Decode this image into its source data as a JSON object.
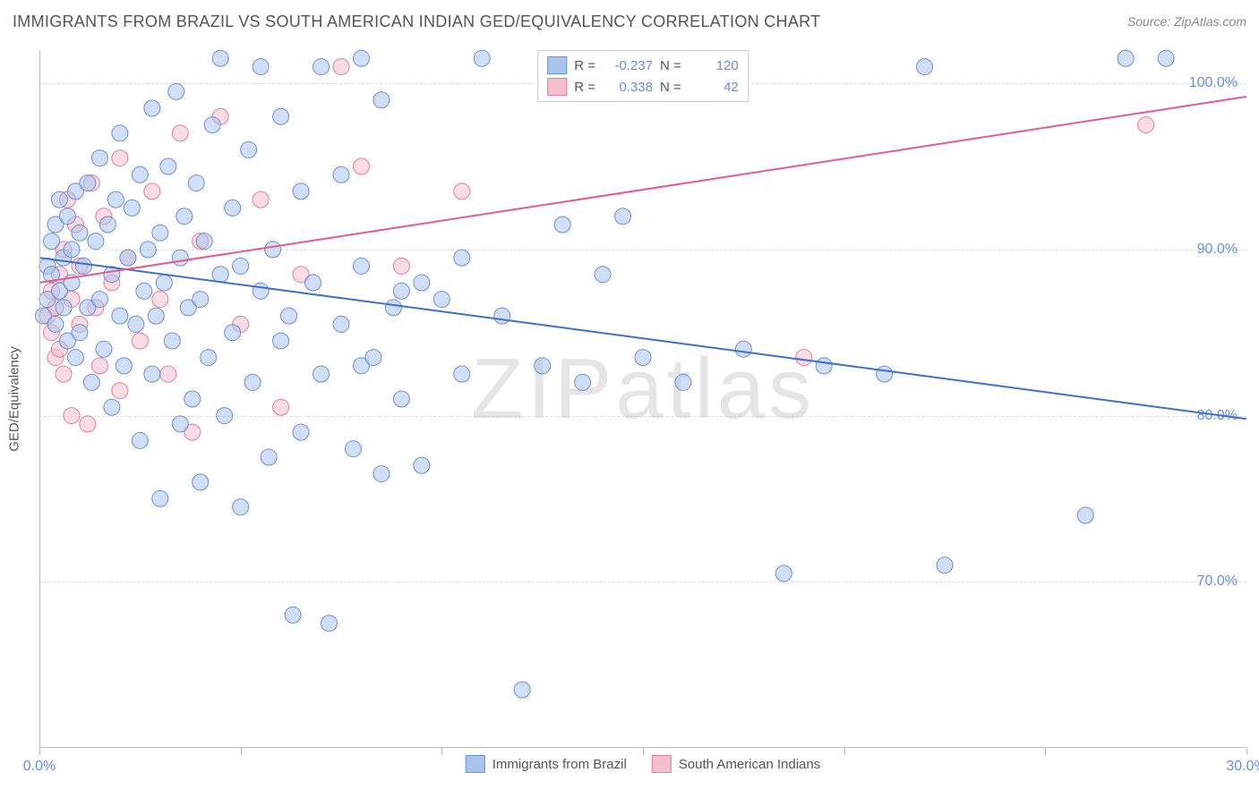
{
  "header": {
    "title": "IMMIGRANTS FROM BRAZIL VS SOUTH AMERICAN INDIAN GED/EQUIVALENCY CORRELATION CHART",
    "source_prefix": "Source: ",
    "source": "ZipAtlas.com"
  },
  "watermark": "ZIPatlas",
  "chart": {
    "type": "scatter",
    "y_axis_title": "GED/Equivalency",
    "xlim": [
      0,
      30
    ],
    "ylim": [
      60,
      102
    ],
    "xticks": [
      0,
      5,
      10,
      15,
      20,
      25,
      30
    ],
    "xtick_labels": {
      "0": "0.0%",
      "30": "30.0%"
    },
    "yticks": [
      70,
      80,
      90,
      100
    ],
    "ytick_labels": {
      "70": "70.0%",
      "80": "80.0%",
      "90": "90.0%",
      "100": "100.0%"
    },
    "grid_color": "#dddddd",
    "axis_color": "#bbbbbb",
    "background_color": "#ffffff",
    "point_radius": 9,
    "point_opacity": 0.55,
    "series": [
      {
        "key": "brazil",
        "label": "Immigrants from Brazil",
        "fill": "#a9c4ec",
        "stroke": "#6b8fd6",
        "R": "-0.237",
        "N": "120",
        "trend": {
          "x1": 0,
          "y1": 89.5,
          "x2": 30,
          "y2": 79.8,
          "stroke": "#3f6fd1",
          "width": 2
        },
        "points": [
          [
            0.1,
            86.0
          ],
          [
            0.2,
            89.0
          ],
          [
            0.2,
            87.0
          ],
          [
            0.3,
            90.5
          ],
          [
            0.3,
            88.5
          ],
          [
            0.4,
            91.5
          ],
          [
            0.4,
            85.5
          ],
          [
            0.5,
            93.0
          ],
          [
            0.5,
            87.5
          ],
          [
            0.6,
            89.5
          ],
          [
            0.6,
            86.5
          ],
          [
            0.7,
            92.0
          ],
          [
            0.7,
            84.5
          ],
          [
            0.8,
            90.0
          ],
          [
            0.8,
            88.0
          ],
          [
            0.9,
            93.5
          ],
          [
            0.9,
            83.5
          ],
          [
            1.0,
            91.0
          ],
          [
            1.0,
            85.0
          ],
          [
            1.1,
            89.0
          ],
          [
            1.2,
            94.0
          ],
          [
            1.2,
            86.5
          ],
          [
            1.3,
            82.0
          ],
          [
            1.4,
            90.5
          ],
          [
            1.5,
            87.0
          ],
          [
            1.5,
            95.5
          ],
          [
            1.6,
            84.0
          ],
          [
            1.7,
            91.5
          ],
          [
            1.8,
            88.5
          ],
          [
            1.8,
            80.5
          ],
          [
            1.9,
            93.0
          ],
          [
            2.0,
            86.0
          ],
          [
            2.0,
            97.0
          ],
          [
            2.1,
            83.0
          ],
          [
            2.2,
            89.5
          ],
          [
            2.3,
            92.5
          ],
          [
            2.4,
            85.5
          ],
          [
            2.5,
            78.5
          ],
          [
            2.5,
            94.5
          ],
          [
            2.6,
            87.5
          ],
          [
            2.7,
            90.0
          ],
          [
            2.8,
            98.5
          ],
          [
            2.8,
            82.5
          ],
          [
            2.9,
            86.0
          ],
          [
            3.0,
            91.0
          ],
          [
            3.0,
            75.0
          ],
          [
            3.1,
            88.0
          ],
          [
            3.2,
            95.0
          ],
          [
            3.3,
            84.5
          ],
          [
            3.4,
            99.5
          ],
          [
            3.5,
            79.5
          ],
          [
            3.5,
            89.5
          ],
          [
            3.6,
            92.0
          ],
          [
            3.7,
            86.5
          ],
          [
            3.8,
            81.0
          ],
          [
            3.9,
            94.0
          ],
          [
            4.0,
            87.0
          ],
          [
            4.0,
            76.0
          ],
          [
            4.1,
            90.5
          ],
          [
            4.2,
            83.5
          ],
          [
            4.3,
            97.5
          ],
          [
            4.5,
            88.5
          ],
          [
            4.5,
            101.5
          ],
          [
            4.6,
            80.0
          ],
          [
            4.8,
            85.0
          ],
          [
            4.8,
            92.5
          ],
          [
            5.0,
            89.0
          ],
          [
            5.0,
            74.5
          ],
          [
            5.2,
            96.0
          ],
          [
            5.3,
            82.0
          ],
          [
            5.5,
            87.5
          ],
          [
            5.5,
            101.0
          ],
          [
            5.7,
            77.5
          ],
          [
            5.8,
            90.0
          ],
          [
            6.0,
            98.0
          ],
          [
            6.0,
            84.5
          ],
          [
            6.2,
            86.0
          ],
          [
            6.3,
            68.0
          ],
          [
            6.5,
            93.5
          ],
          [
            6.5,
            79.0
          ],
          [
            6.8,
            88.0
          ],
          [
            7.0,
            82.5
          ],
          [
            7.0,
            101.0
          ],
          [
            7.2,
            67.5
          ],
          [
            7.5,
            85.5
          ],
          [
            7.5,
            94.5
          ],
          [
            7.8,
            78.0
          ],
          [
            8.0,
            89.0
          ],
          [
            8.0,
            83.0
          ],
          [
            8.0,
            101.5
          ],
          [
            8.3,
            83.5
          ],
          [
            8.5,
            99.0
          ],
          [
            8.5,
            76.5
          ],
          [
            8.8,
            86.5
          ],
          [
            9.0,
            87.5
          ],
          [
            9.0,
            81.0
          ],
          [
            9.5,
            88.0
          ],
          [
            9.5,
            77.0
          ],
          [
            10.0,
            87.0
          ],
          [
            10.5,
            89.5
          ],
          [
            10.5,
            82.5
          ],
          [
            11.0,
            101.5
          ],
          [
            11.5,
            86.0
          ],
          [
            12.0,
            63.5
          ],
          [
            12.5,
            83.0
          ],
          [
            13.0,
            91.5
          ],
          [
            13.5,
            82.0
          ],
          [
            14.0,
            88.5
          ],
          [
            14.5,
            92.0
          ],
          [
            15.0,
            83.5
          ],
          [
            16.0,
            82.0
          ],
          [
            17.5,
            84.0
          ],
          [
            18.5,
            70.5
          ],
          [
            19.5,
            83.0
          ],
          [
            21.0,
            82.5
          ],
          [
            22.0,
            101.0
          ],
          [
            22.5,
            71.0
          ],
          [
            26.0,
            74.0
          ],
          [
            27.0,
            101.5
          ],
          [
            28.0,
            101.5
          ]
        ]
      },
      {
        "key": "sai",
        "label": "South American Indians",
        "fill": "#f4c0cd",
        "stroke": "#e87b9a",
        "R": "0.338",
        "N": "42",
        "trend": {
          "x1": 0,
          "y1": 88.0,
          "x2": 30,
          "y2": 99.2,
          "stroke": "#e85a88",
          "width": 2
        },
        "points": [
          [
            0.2,
            86.0
          ],
          [
            0.3,
            85.0
          ],
          [
            0.3,
            87.5
          ],
          [
            0.4,
            83.5
          ],
          [
            0.4,
            86.5
          ],
          [
            0.5,
            88.5
          ],
          [
            0.5,
            84.0
          ],
          [
            0.6,
            90.0
          ],
          [
            0.6,
            82.5
          ],
          [
            0.7,
            93.0
          ],
          [
            0.8,
            87.0
          ],
          [
            0.8,
            80.0
          ],
          [
            0.9,
            91.5
          ],
          [
            1.0,
            85.5
          ],
          [
            1.0,
            89.0
          ],
          [
            1.2,
            79.5
          ],
          [
            1.3,
            94.0
          ],
          [
            1.4,
            86.5
          ],
          [
            1.5,
            83.0
          ],
          [
            1.6,
            92.0
          ],
          [
            1.8,
            88.0
          ],
          [
            2.0,
            95.5
          ],
          [
            2.0,
            81.5
          ],
          [
            2.2,
            89.5
          ],
          [
            2.5,
            84.5
          ],
          [
            2.8,
            93.5
          ],
          [
            3.0,
            87.0
          ],
          [
            3.2,
            82.5
          ],
          [
            3.5,
            97.0
          ],
          [
            3.8,
            79.0
          ],
          [
            4.0,
            90.5
          ],
          [
            4.5,
            98.0
          ],
          [
            5.0,
            85.5
          ],
          [
            5.5,
            93.0
          ],
          [
            6.0,
            80.5
          ],
          [
            6.5,
            88.5
          ],
          [
            7.5,
            101.0
          ],
          [
            8.0,
            95.0
          ],
          [
            9.0,
            89.0
          ],
          [
            10.5,
            93.5
          ],
          [
            19.0,
            83.5
          ],
          [
            27.5,
            97.5
          ]
        ]
      }
    ]
  },
  "legend_top": {
    "r_label": "R =",
    "n_label": "N ="
  }
}
